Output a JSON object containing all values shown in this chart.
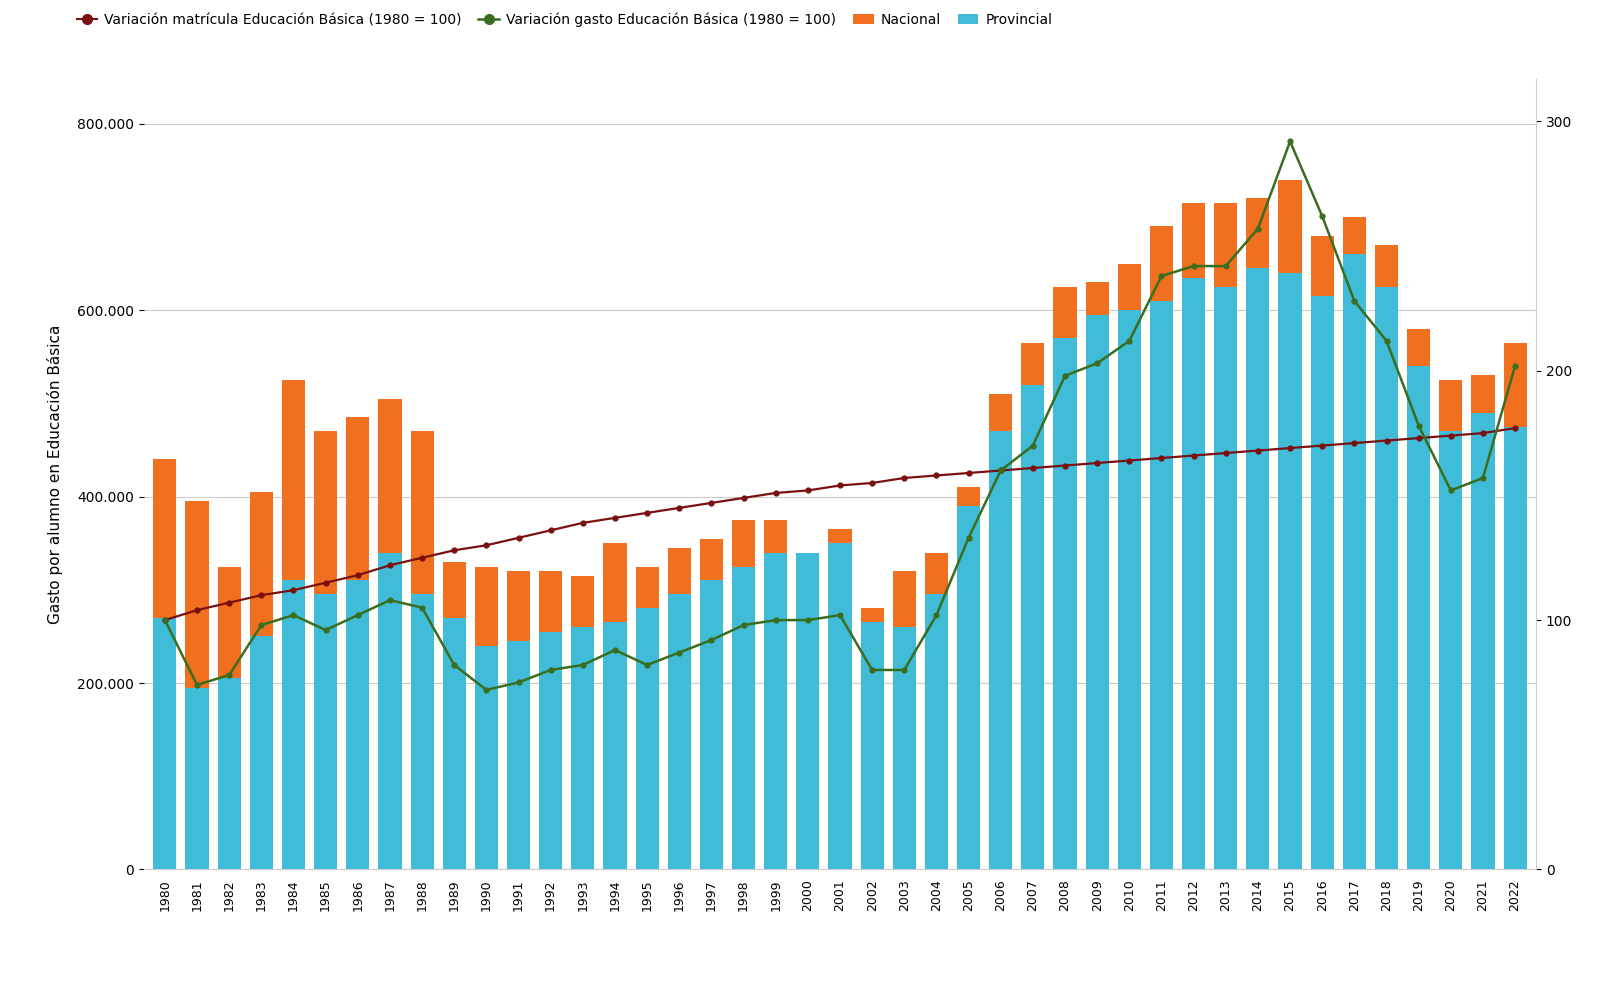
{
  "years": [
    1980,
    1981,
    1982,
    1983,
    1984,
    1985,
    1986,
    1987,
    1988,
    1989,
    1990,
    1991,
    1992,
    1993,
    1994,
    1995,
    1996,
    1997,
    1998,
    1999,
    2000,
    2001,
    2002,
    2003,
    2004,
    2005,
    2006,
    2007,
    2008,
    2009,
    2010,
    2011,
    2012,
    2013,
    2014,
    2015,
    2016,
    2017,
    2018,
    2019,
    2020,
    2021,
    2022
  ],
  "provincial": [
    270000,
    195000,
    205000,
    250000,
    310000,
    295000,
    310000,
    340000,
    295000,
    270000,
    240000,
    245000,
    255000,
    260000,
    265000,
    280000,
    295000,
    310000,
    325000,
    340000,
    340000,
    350000,
    265000,
    260000,
    295000,
    390000,
    470000,
    520000,
    570000,
    595000,
    600000,
    610000,
    635000,
    625000,
    645000,
    640000,
    615000,
    660000,
    625000,
    540000,
    470000,
    490000,
    475000
  ],
  "nacional": [
    170000,
    200000,
    120000,
    155000,
    215000,
    175000,
    175000,
    165000,
    175000,
    60000,
    85000,
    75000,
    65000,
    55000,
    85000,
    45000,
    50000,
    45000,
    50000,
    35000,
    0,
    15000,
    15000,
    60000,
    45000,
    20000,
    40000,
    45000,
    55000,
    35000,
    50000,
    80000,
    80000,
    90000,
    75000,
    100000,
    65000,
    40000,
    45000,
    40000,
    55000,
    40000,
    90000
  ],
  "variacion_matricula": [
    100,
    104,
    107,
    110,
    112,
    115,
    118,
    122,
    125,
    128,
    130,
    133,
    136,
    139,
    141,
    143,
    145,
    147,
    149,
    151,
    152,
    154,
    155,
    157,
    158,
    159,
    160,
    161,
    162,
    163,
    164,
    165,
    166,
    167,
    168,
    169,
    170,
    171,
    172,
    173,
    174,
    175,
    177
  ],
  "variacion_gasto": [
    100,
    74,
    78,
    98,
    102,
    96,
    102,
    108,
    105,
    82,
    72,
    75,
    80,
    82,
    88,
    82,
    87,
    92,
    98,
    100,
    100,
    102,
    80,
    80,
    102,
    133,
    160,
    170,
    198,
    203,
    212,
    238,
    242,
    242,
    257,
    292,
    262,
    228,
    212,
    178,
    152,
    157,
    202
  ],
  "bar_color_nacional": "#F07020",
  "bar_color_provincial": "#40BCD8",
  "line_color_matricula": "#7B1010",
  "line_color_gasto": "#3A6E1E",
  "background_color": "#FFFFFF",
  "grid_color": "#CCCCCC",
  "ylabel_left": "Gasto por alumno en Educación Básica",
  "ylim_left": [
    0,
    848000
  ],
  "ylim_right": [
    0,
    317
  ],
  "yticks_left": [
    0,
    200000,
    400000,
    600000,
    800000
  ],
  "yticks_right": [
    0,
    100,
    200,
    300
  ],
  "legend_labels": [
    "Variación matrícula Educación Básica (1980 = 100)",
    "Variación gasto Educación Básica (1980 = 100)",
    "Nacional",
    "Provincial"
  ],
  "figsize": [
    16.0,
    9.88
  ],
  "dpi": 100
}
